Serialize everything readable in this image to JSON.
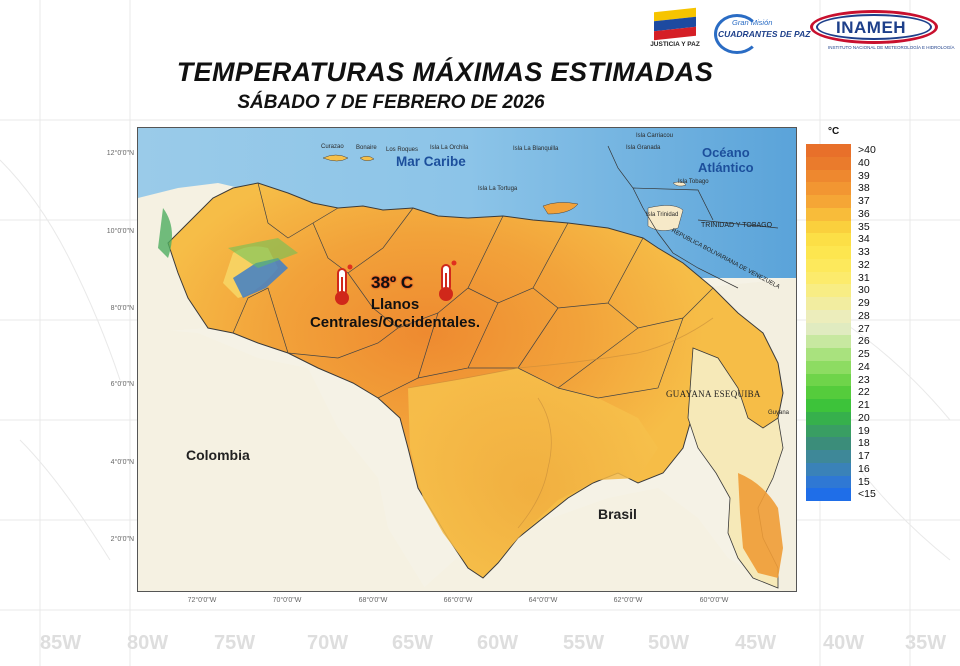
{
  "header": {
    "title": "TEMPERATURAS MÁXIMAS ESTIMADAS",
    "subtitle": "SÁBADO 7 DE FEBRERO DE 2026"
  },
  "logos": {
    "justicia_caption": "JUSTICIA Y PAZ",
    "mision_small": "Gran Misión",
    "mision_big": "CUADRANTES DE PAZ",
    "inameh": "INAMEH",
    "inameh_sub": "INSTITUTO NACIONAL DE METEOROLOGÍA E HIDROLOGÍA"
  },
  "map": {
    "labels": {
      "mar_caribe": "Mar Caribe",
      "oceano": "Océano\nAtlántico",
      "colombia": "Colombia",
      "brasil": "Brasil",
      "guayana": "GUAYANA ESEQUIBA",
      "trinidad_tobago": "TRINIDAD Y TOBAGO",
      "rep_bolivariana": "REPUBLICA BOLIVARIANA DE VENEZUELA",
      "trinidad": "Isla Trinidad",
      "tobago": "Isla Tobago",
      "granada": "Isla Granada",
      "carriacou": "Isla Carriacou",
      "curazao": "Curazao",
      "bonaire": "Bonaire",
      "orchila": "Isla La Orchila",
      "blanquilla": "Isla La Blanquilla",
      "tortuga": "Isla La Tortuga",
      "los_roques": "Los Roques",
      "guyana_town": "Guyana"
    },
    "annotation": {
      "temperature": "38º C",
      "region": "Llanos\nCentrales/Occidentales."
    },
    "lat_ticks": [
      "12°0'0\"N",
      "10°0'0\"N",
      "8°0'0\"N",
      "6°0'0\"N",
      "4°0'0\"N",
      "2°0'0\"N"
    ],
    "lon_ticks": [
      "72°0'0\"W",
      "70°0'0\"W",
      "68°0'0\"W",
      "66°0'0\"W",
      "64°0'0\"W",
      "62°0'0\"W",
      "60°0'0\"W"
    ]
  },
  "legend": {
    "unit": "°C",
    "entries": [
      {
        "label": ">40",
        "color": "#e8702a"
      },
      {
        "label": "40",
        "color": "#ea7b2c"
      },
      {
        "label": "39",
        "color": "#ee882f"
      },
      {
        "label": "38",
        "color": "#f29632"
      },
      {
        "label": "37",
        "color": "#f5a636"
      },
      {
        "label": "36",
        "color": "#f8bc3a"
      },
      {
        "label": "35",
        "color": "#fad03d"
      },
      {
        "label": "34",
        "color": "#fcdf46"
      },
      {
        "label": "33",
        "color": "#fde64f"
      },
      {
        "label": "32",
        "color": "#fde95c"
      },
      {
        "label": "31",
        "color": "#fceb6c"
      },
      {
        "label": "30",
        "color": "#f8ed84"
      },
      {
        "label": "29",
        "color": "#f2eda0"
      },
      {
        "label": "28",
        "color": "#ecedbb"
      },
      {
        "label": "27",
        "color": "#e0ebc0"
      },
      {
        "label": "26",
        "color": "#c7e8a0"
      },
      {
        "label": "25",
        "color": "#a9e27e"
      },
      {
        "label": "24",
        "color": "#8ddc62"
      },
      {
        "label": "23",
        "color": "#6fd44a"
      },
      {
        "label": "22",
        "color": "#55cc3c"
      },
      {
        "label": "21",
        "color": "#3dc33a"
      },
      {
        "label": "20",
        "color": "#36b04c"
      },
      {
        "label": "19",
        "color": "#399e63"
      },
      {
        "label": "18",
        "color": "#3b8d7a"
      },
      {
        "label": "17",
        "color": "#3e8898"
      },
      {
        "label": "16",
        "color": "#3a82b8"
      },
      {
        "label": "15",
        "color": "#2f78d4"
      },
      {
        "label": "<15",
        "color": "#1f6ee8"
      }
    ]
  },
  "background": {
    "coords": [
      "85W",
      "80W",
      "75W",
      "70W",
      "65W",
      "60W",
      "55W",
      "50W",
      "45W",
      "40W",
      "35W"
    ]
  },
  "colors": {
    "sea": "#8ec6e8",
    "sea_deep": "#6aaedc",
    "land_hot": "#f2a23a",
    "land_warm": "#f6c04a",
    "land_neighbor": "#f5f1e2"
  }
}
